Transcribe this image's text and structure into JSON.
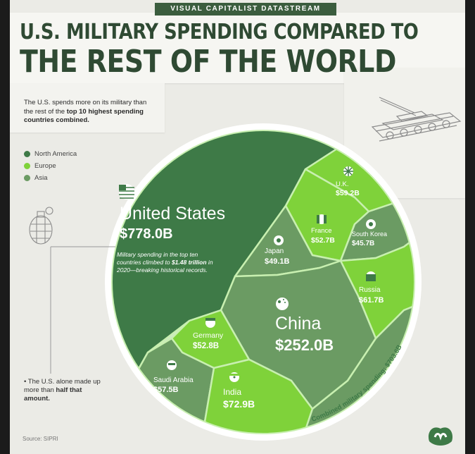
{
  "banner": "VISUAL CAPITALIST DATASTREAM",
  "title_line1": "U.S. MILITARY SPENDING COMPARED TO",
  "title_line2": "THE REST OF THE WORLD",
  "intro": {
    "part1": "The U.S. spends more on its military",
    "part2": "than the rest of the ",
    "bold": "top 10 highest spending countries combined."
  },
  "legend": [
    {
      "label": "North America",
      "color": "#3e7a47"
    },
    {
      "label": "Europe",
      "color": "#7fd23a"
    },
    {
      "label": "Asia",
      "color": "#6b9b63"
    }
  ],
  "us_note": {
    "part1": "Military spending in the top ten countries climbed to ",
    "bold": "$1.48 trillion",
    "part2": " in 2020—breaking historical records."
  },
  "side_note": {
    "part1": "• The U.S. alone made up more than ",
    "bold": "half that amount."
  },
  "source": "Source: SIPRI",
  "combined_label": "Combined military spending: $703.6B",
  "colors": {
    "north_america": "#3e7a47",
    "europe": "#7fd23a",
    "asia": "#6b9b63",
    "title": "#2f4a33",
    "background": "#ebebe6"
  },
  "chart_data": {
    "type": "treemap",
    "unit": "USD billions",
    "year": 2020,
    "items": [
      {
        "country": "United States",
        "label": "$778.0B",
        "value": 778.0,
        "region": "North America",
        "flag": "us-flag-icon"
      },
      {
        "country": "China",
        "label": "$252.0B",
        "value": 252.0,
        "region": "Asia",
        "flag": "china-flag-icon"
      },
      {
        "country": "India",
        "label": "$72.9B",
        "value": 72.9,
        "region": "Asia",
        "flag": "india-flag-icon"
      },
      {
        "country": "Russia",
        "label": "$61.7B",
        "value": 61.7,
        "region": "Europe",
        "flag": "russia-flag-icon"
      },
      {
        "country": "U.K.",
        "label": "$59.2B",
        "value": 59.2,
        "region": "Europe",
        "flag": "uk-flag-icon"
      },
      {
        "country": "Saudi Arabia",
        "label": "$57.5B",
        "value": 57.5,
        "region": "Asia",
        "flag": "saudi-flag-icon"
      },
      {
        "country": "Germany",
        "label": "$52.8B",
        "value": 52.8,
        "region": "Europe",
        "flag": "germany-flag-icon"
      },
      {
        "country": "France",
        "label": "$52.7B",
        "value": 52.7,
        "region": "Europe",
        "flag": "france-flag-icon"
      },
      {
        "country": "Japan",
        "label": "$49.1B",
        "value": 49.1,
        "region": "Asia",
        "flag": "japan-flag-icon"
      },
      {
        "country": "South Korea",
        "label": "$45.7B",
        "value": 45.7,
        "region": "Asia",
        "flag": "south-korea-flag-icon"
      }
    ],
    "combined_rest_of_top10": 703.6
  }
}
